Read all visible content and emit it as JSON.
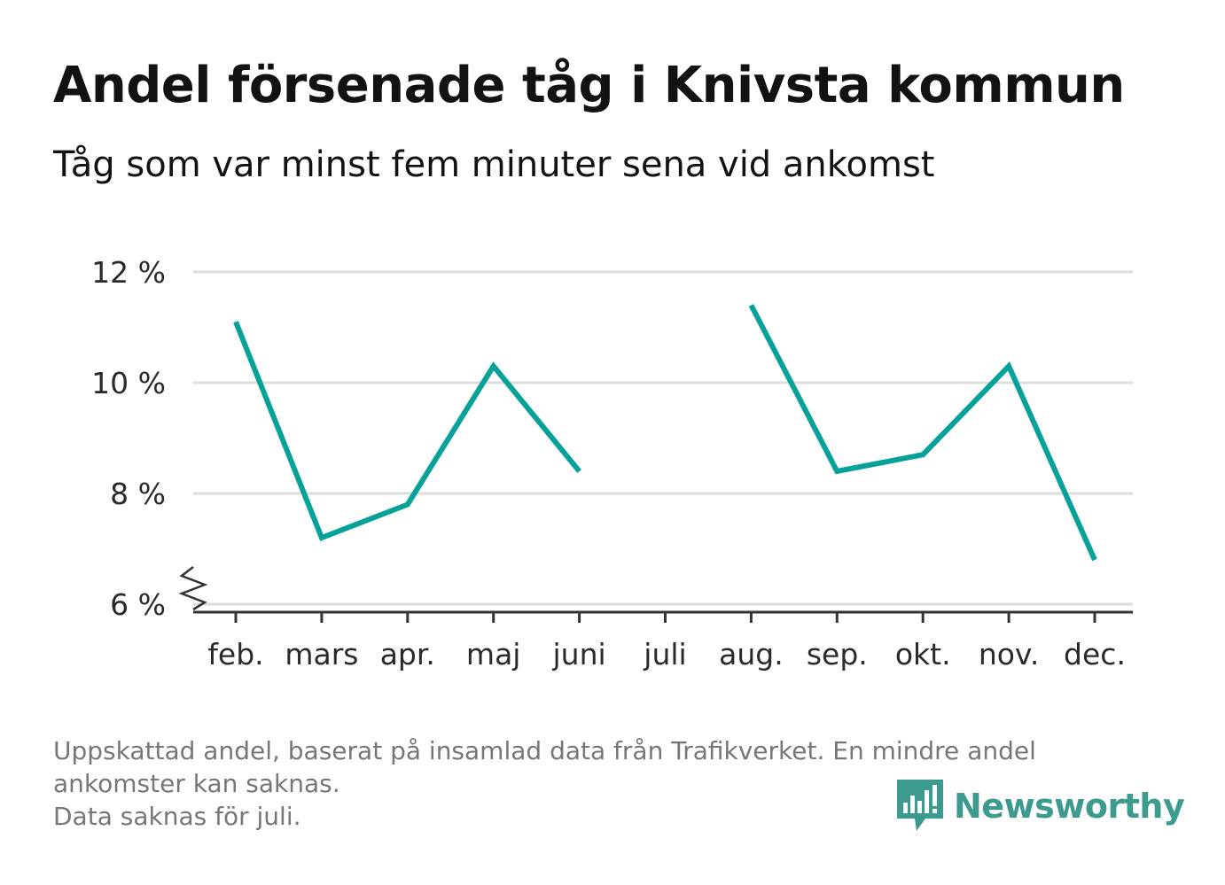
{
  "title": "Andel försenade tåg i Knivsta kommun",
  "subtitle": "Tåg som var minst fem minuter sena vid ankomst",
  "footnote": {
    "line1": "Uppskattad andel, baserat på insamlad data från Trafikverket. En mindre andel",
    "line2": "ankomster kan saknas.",
    "line3": "Data saknas för juli."
  },
  "logo": {
    "text": "Newsworthy",
    "icon": "newsworthy-bars-icon"
  },
  "colors": {
    "line": "#06a29a",
    "grid": "#dddddd",
    "axis": "#333333",
    "logo": "#3c9a8e"
  },
  "chart_data": {
    "type": "line",
    "categories": [
      "feb.",
      "mars",
      "apr.",
      "maj",
      "juni",
      "juli",
      "aug.",
      "sep.",
      "okt.",
      "nov.",
      "dec."
    ],
    "series": [
      {
        "values": [
          11.1,
          7.2,
          7.8,
          10.3,
          8.4,
          null,
          11.4,
          8.4,
          8.7,
          10.3,
          6.8
        ]
      }
    ],
    "ylim": [
      6,
      12
    ],
    "yticks": [
      6,
      8,
      10,
      12
    ],
    "ytick_labels": [
      "6 %",
      "8 %",
      "10 %",
      "12 %"
    ],
    "axis_break": true,
    "grid": true
  }
}
